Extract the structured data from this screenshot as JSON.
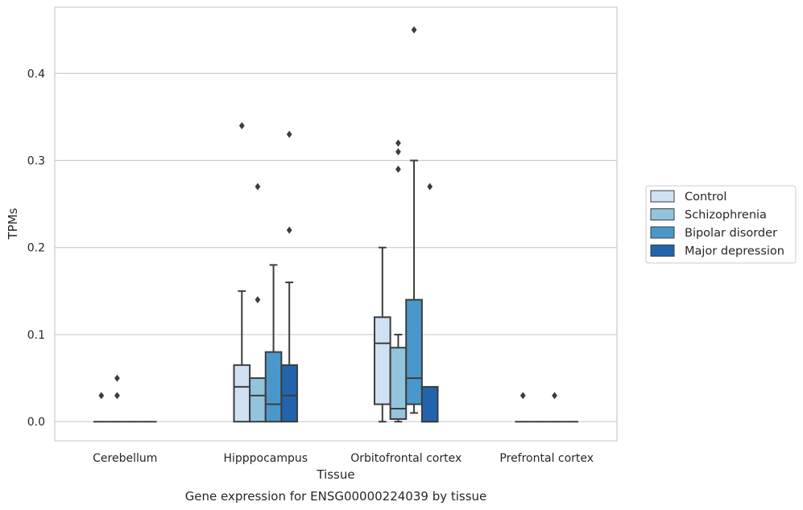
{
  "chart_data": {
    "type": "box",
    "caption": "Gene expression for ENSG00000224039 by tissue",
    "xlabel": "Tissue",
    "ylabel": "TPMs",
    "ylim": [
      -0.022,
      0.476
    ],
    "yticks": [
      0.0,
      0.1,
      0.2,
      0.3,
      0.4
    ],
    "ytick_labels": [
      "0.0",
      "0.1",
      "0.2",
      "0.3",
      "0.4"
    ],
    "grid": "horizontal",
    "legend_position": "right",
    "categories": [
      "Cerebellum",
      "Hipppocampus",
      "Orbitofrontal cortex",
      "Prefrontal cortex"
    ],
    "series": [
      {
        "name": "Control",
        "color": "#cfe1f2",
        "boxes": [
          {
            "whislo": 0,
            "q1": 0,
            "med": 0,
            "q3": 0,
            "whishi": 0,
            "fliers": [
              0.03
            ]
          },
          {
            "whislo": 0,
            "q1": 0,
            "med": 0.04,
            "q3": 0.065,
            "whishi": 0.15,
            "fliers": [
              0.34
            ]
          },
          {
            "whislo": 0,
            "q1": 0.02,
            "med": 0.09,
            "q3": 0.12,
            "whishi": 0.2,
            "fliers": []
          },
          {
            "whislo": 0,
            "q1": 0,
            "med": 0,
            "q3": 0,
            "whishi": 0,
            "fliers": [
              0.03
            ]
          }
        ]
      },
      {
        "name": "Schizophrenia",
        "color": "#93c4de",
        "boxes": [
          {
            "whislo": 0,
            "q1": 0,
            "med": 0,
            "q3": 0,
            "whishi": 0,
            "fliers": [
              0.05,
              0.03
            ]
          },
          {
            "whislo": 0,
            "q1": 0,
            "med": 0.03,
            "q3": 0.05,
            "whishi": 0.05,
            "fliers": [
              0.27,
              0.14
            ]
          },
          {
            "whislo": 0,
            "q1": 0.003,
            "med": 0.015,
            "q3": 0.085,
            "whishi": 0.1,
            "fliers": [
              0.32,
              0.31,
              0.29
            ]
          },
          {
            "whislo": 0,
            "q1": 0,
            "med": 0,
            "q3": 0,
            "whishi": 0,
            "fliers": []
          }
        ]
      },
      {
        "name": "Bipolar disorder",
        "color": "#4a98c9",
        "boxes": [
          {
            "whislo": 0,
            "q1": 0,
            "med": 0,
            "q3": 0,
            "whishi": 0,
            "fliers": []
          },
          {
            "whislo": 0,
            "q1": 0,
            "med": 0.02,
            "q3": 0.08,
            "whishi": 0.18,
            "fliers": []
          },
          {
            "whislo": 0.01,
            "q1": 0.02,
            "med": 0.05,
            "q3": 0.14,
            "whishi": 0.3,
            "fliers": [
              0.45
            ]
          },
          {
            "whislo": 0,
            "q1": 0,
            "med": 0,
            "q3": 0,
            "whishi": 0,
            "fliers": [
              0.03
            ]
          }
        ]
      },
      {
        "name": "Major depression",
        "color": "#2164ab",
        "boxes": [
          {
            "whislo": 0,
            "q1": 0,
            "med": 0,
            "q3": 0,
            "whishi": 0,
            "fliers": []
          },
          {
            "whislo": 0,
            "q1": 0,
            "med": 0.03,
            "q3": 0.065,
            "whishi": 0.16,
            "fliers": [
              0.33,
              0.22
            ]
          },
          {
            "whislo": 0,
            "q1": 0,
            "med": 0,
            "q3": 0.04,
            "whishi": 0.04,
            "fliers": [
              0.27
            ]
          },
          {
            "whislo": 0,
            "q1": 0,
            "med": 0,
            "q3": 0,
            "whishi": 0,
            "fliers": []
          }
        ]
      }
    ]
  }
}
